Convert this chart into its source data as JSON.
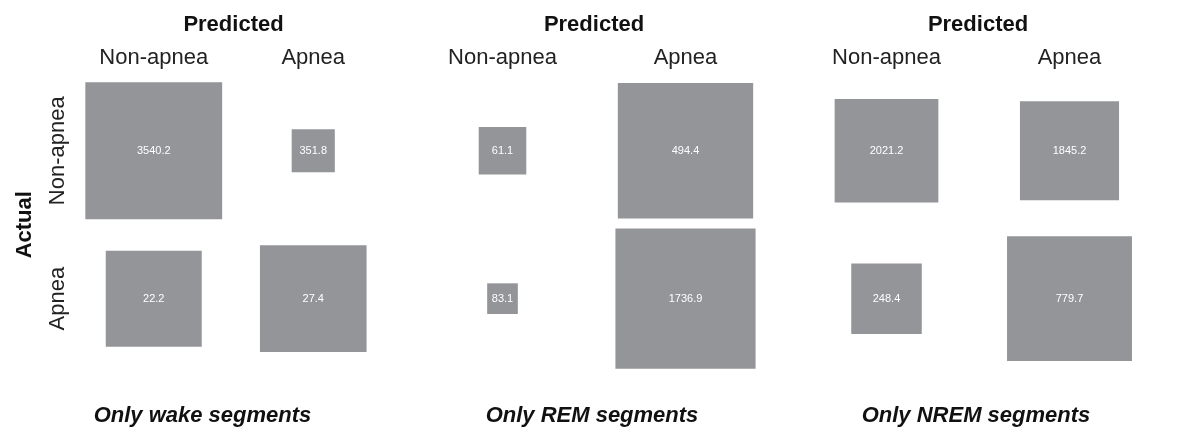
{
  "chart_data": [
    {
      "type": "heatmap",
      "title": "Only wake segments",
      "xlabel": "Predicted",
      "ylabel": "Actual",
      "categories": [
        "Non-apnea",
        "Apnea"
      ],
      "y_categories": [
        "Non-apnea",
        "Apnea"
      ],
      "cells": [
        [
          3540.2,
          351.8
        ],
        [
          22.2,
          27.4
        ]
      ],
      "color": "#939598",
      "data_labels": true,
      "grid": false
    },
    {
      "type": "heatmap",
      "title": "Only REM segments",
      "xlabel": "Predicted",
      "categories": [
        "Non-apnea",
        "Apnea"
      ],
      "y_categories": [
        null,
        null
      ],
      "cells": [
        [
          61.1,
          494.4
        ],
        [
          83.1,
          1736.9
        ]
      ],
      "color": "#939598",
      "data_labels": true,
      "grid": false,
      "tick_labels": "x"
    },
    {
      "type": "heatmap",
      "title": "Only NREM segments",
      "xlabel": "Predicted",
      "categories": [
        "Non-apnea",
        "Apnea"
      ],
      "y_categories": [
        null,
        null
      ],
      "cells": [
        [
          2021.2,
          1845.2
        ],
        [
          248.4,
          779.7
        ]
      ],
      "color": "#939598",
      "data_labels": true,
      "grid": false,
      "tick_labels": "x"
    }
  ]
}
